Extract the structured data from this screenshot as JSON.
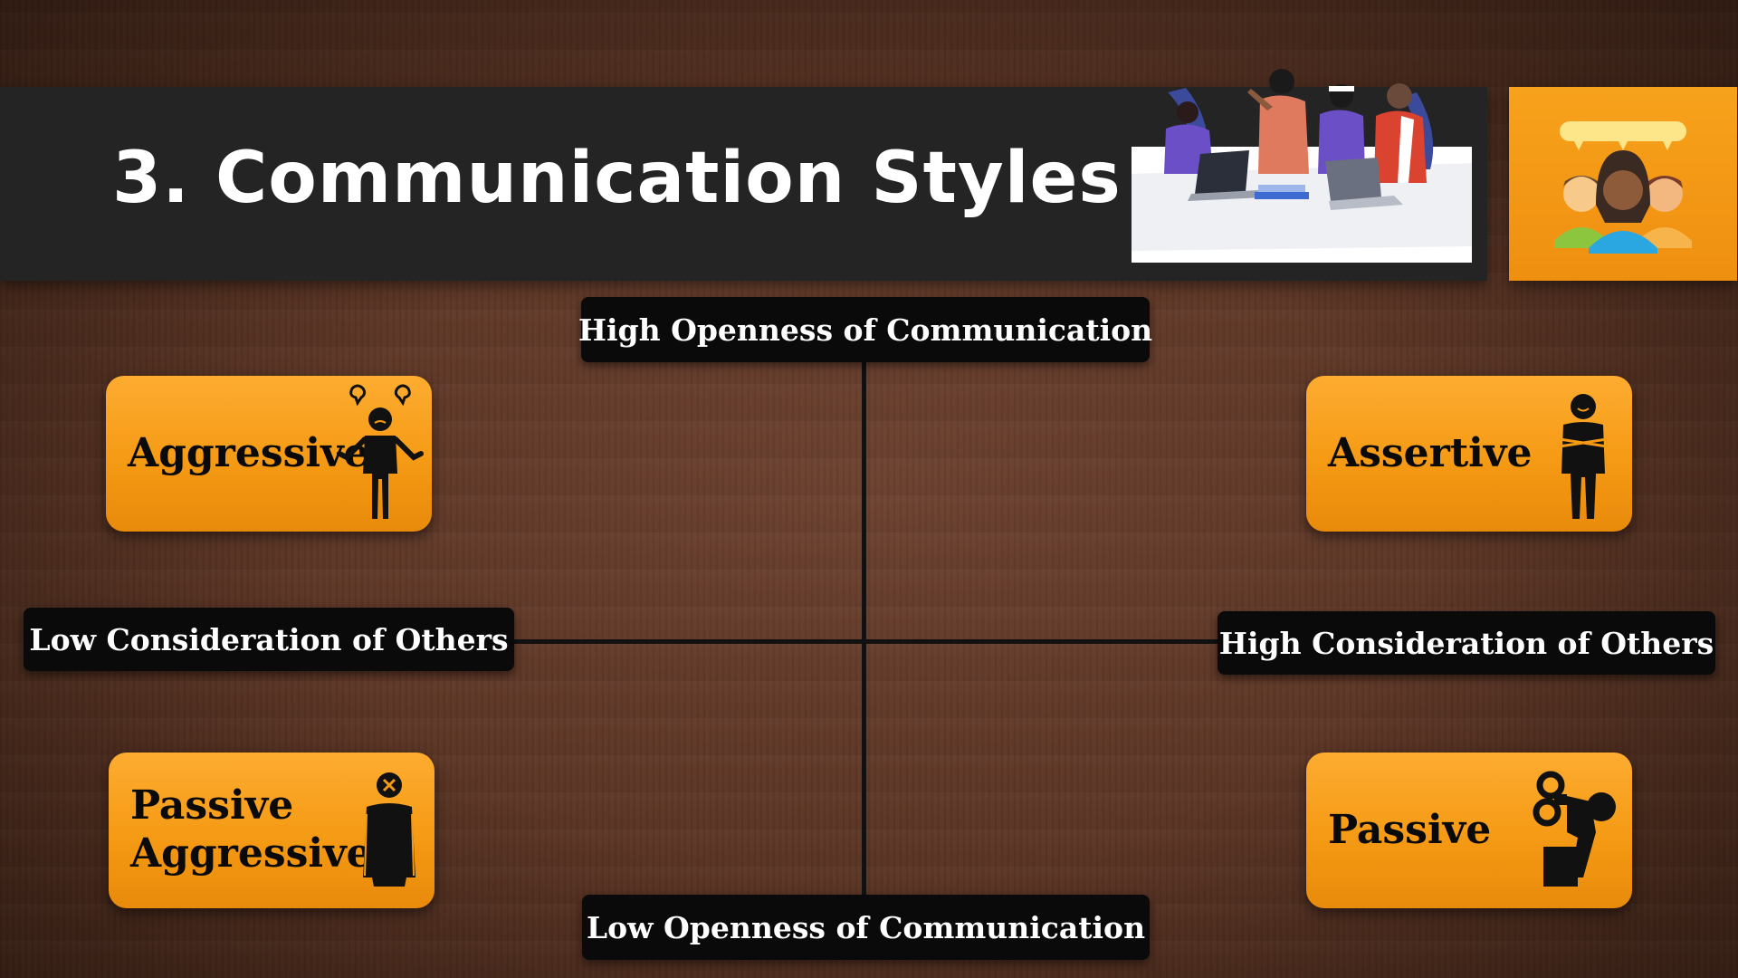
{
  "slide": {
    "title": "3. Communication Styles"
  },
  "axes": {
    "top": "High Openness of Communication",
    "bottom": "Low Openness of Communication",
    "left": "Low Consideration of Others",
    "right": "High Consideration of Others"
  },
  "quadrants": {
    "top_left": {
      "label": "Aggressive",
      "icon": "angry-person-icon"
    },
    "top_right": {
      "label": "Assertive",
      "icon": "confident-person-icon"
    },
    "bottom_left": {
      "label_line1": "Passive",
      "label_line2": "Aggressive",
      "icon": "frustrated-person-icon"
    },
    "bottom_right": {
      "label": "Passive",
      "icon": "wind-up-person-icon"
    }
  },
  "colors": {
    "title_bar": "#242424",
    "card_orange": "#f59a14",
    "axis_label_bg": "#0a0a0a",
    "background_wood": "#5a3424"
  }
}
